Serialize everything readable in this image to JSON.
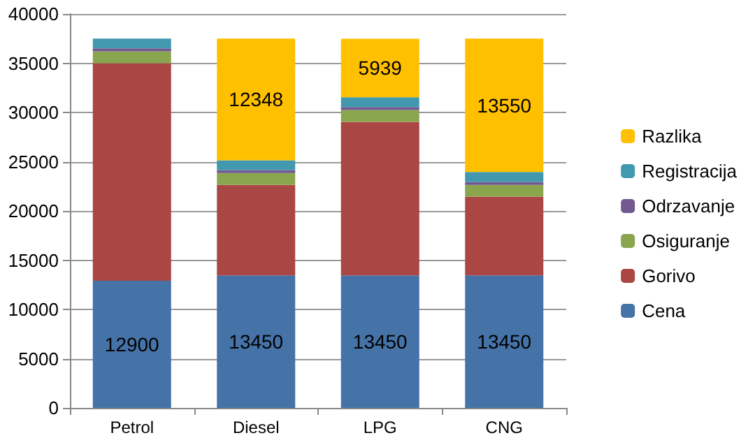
{
  "chart_data": {
    "type": "bar",
    "stacked": true,
    "categories": [
      "Petrol",
      "Diesel",
      "LPG",
      "CNG"
    ],
    "series": [
      {
        "name": "Cena",
        "color": "#4572a7",
        "values": [
          12900,
          13450,
          13450,
          13450
        ],
        "value_labels": [
          "12900",
          "13450",
          "13450",
          "13450"
        ]
      },
      {
        "name": "Gorivo",
        "color": "#aa4643",
        "values": [
          22100,
          9200,
          15600,
          8000
        ]
      },
      {
        "name": "Osiguranje",
        "color": "#89a54e",
        "values": [
          1200,
          1200,
          1200,
          1200
        ]
      },
      {
        "name": "Odrzavanje",
        "color": "#71588f",
        "values": [
          300,
          300,
          300,
          300
        ]
      },
      {
        "name": "Registracija",
        "color": "#4198af",
        "values": [
          1000,
          1000,
          1000,
          1000
        ]
      },
      {
        "name": "Razlika",
        "color": "#ffc000",
        "values": [
          null,
          12348,
          5939,
          13550
        ],
        "value_labels": [
          null,
          "12348",
          "5939",
          "13550"
        ]
      }
    ],
    "ylim": [
      0,
      40000
    ],
    "yticks": [
      0,
      5000,
      10000,
      15000,
      20000,
      25000,
      30000,
      35000,
      40000
    ],
    "grid": "y",
    "legend": "right"
  }
}
